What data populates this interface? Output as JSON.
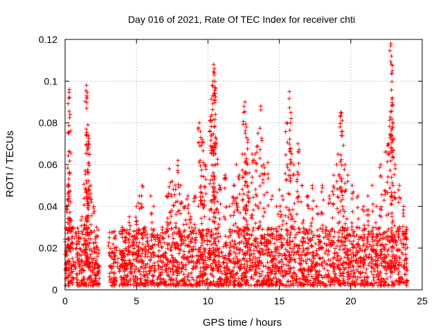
{
  "chart_data": {
    "type": "scatter",
    "title": "Day 016 of 2021, Rate Of TEC Index for receiver chti",
    "xlabel": "GPS time / hours",
    "ylabel": "ROTI / TECUs",
    "xlim": [
      0,
      25
    ],
    "ylim": [
      0,
      0.12
    ],
    "x_ticks": [
      0,
      5,
      10,
      15,
      20,
      25
    ],
    "x_tick_labels": [
      "0",
      "5",
      "10",
      "15",
      "20",
      "25"
    ],
    "y_ticks": [
      0,
      0.02,
      0.04,
      0.06,
      0.08,
      0.1,
      0.12
    ],
    "y_tick_labels": [
      "0",
      "0.02",
      "0.04",
      "0.06",
      "0.08",
      "0.1",
      "0.12"
    ],
    "grid": true,
    "marker": "+",
    "color": "#ff0000",
    "series": [
      {
        "name": "ROTI",
        "points": [
          [
            0.05,
            0.01
          ],
          [
            0.1,
            0.018
          ],
          [
            0.15,
            0.04
          ],
          [
            0.2,
            0.05
          ],
          [
            0.25,
            0.075
          ],
          [
            0.3,
            0.096
          ],
          [
            0.35,
            0.084
          ],
          [
            0.4,
            0.03
          ],
          [
            0.5,
            0.015
          ],
          [
            0.6,
            0.012
          ],
          [
            0.8,
            0.02
          ],
          [
            1.0,
            0.025
          ],
          [
            1.2,
            0.035
          ],
          [
            1.4,
            0.057
          ],
          [
            1.5,
            0.098
          ],
          [
            1.55,
            0.092
          ],
          [
            1.6,
            0.079
          ],
          [
            1.62,
            0.074
          ],
          [
            1.65,
            0.07
          ],
          [
            1.8,
            0.05
          ],
          [
            2.0,
            0.04
          ],
          [
            2.2,
            0.03
          ],
          [
            2.3,
            0.012
          ],
          [
            3.1,
            0.025
          ],
          [
            3.3,
            0.018
          ],
          [
            3.5,
            0.02
          ],
          [
            3.7,
            0.015
          ],
          [
            4.0,
            0.03
          ],
          [
            4.2,
            0.025
          ],
          [
            4.5,
            0.035
          ],
          [
            4.8,
            0.028
          ],
          [
            5.0,
            0.04
          ],
          [
            5.2,
            0.045
          ],
          [
            5.4,
            0.05
          ],
          [
            5.6,
            0.03
          ],
          [
            6.0,
            0.045
          ],
          [
            6.2,
            0.04
          ],
          [
            6.5,
            0.025
          ],
          [
            6.8,
            0.03
          ],
          [
            7.1,
            0.045
          ],
          [
            7.3,
            0.058
          ],
          [
            7.5,
            0.052
          ],
          [
            7.7,
            0.05
          ],
          [
            7.9,
            0.062
          ],
          [
            8.1,
            0.05
          ],
          [
            8.4,
            0.04
          ],
          [
            8.6,
            0.045
          ],
          [
            8.8,
            0.035
          ],
          [
            9.1,
            0.045
          ],
          [
            9.4,
            0.08
          ],
          [
            9.5,
            0.073
          ],
          [
            9.6,
            0.072
          ],
          [
            9.8,
            0.06
          ],
          [
            10.2,
            0.083
          ],
          [
            10.3,
            0.098
          ],
          [
            10.4,
            0.108
          ],
          [
            10.45,
            0.104
          ],
          [
            10.5,
            0.097
          ],
          [
            10.6,
            0.07
          ],
          [
            10.8,
            0.05
          ],
          [
            11.2,
            0.055
          ],
          [
            11.5,
            0.04
          ],
          [
            11.8,
            0.05
          ],
          [
            12.0,
            0.06
          ],
          [
            12.2,
            0.055
          ],
          [
            12.5,
            0.085
          ],
          [
            12.6,
            0.09
          ],
          [
            12.7,
            0.078
          ],
          [
            12.8,
            0.072
          ],
          [
            13.1,
            0.065
          ],
          [
            13.3,
            0.065
          ],
          [
            13.5,
            0.075
          ],
          [
            13.7,
            0.088
          ],
          [
            13.9,
            0.06
          ],
          [
            14.2,
            0.061
          ],
          [
            14.5,
            0.045
          ],
          [
            14.8,
            0.04
          ],
          [
            15.0,
            0.048
          ],
          [
            15.2,
            0.045
          ],
          [
            15.5,
            0.08
          ],
          [
            15.7,
            0.095
          ],
          [
            15.8,
            0.085
          ],
          [
            16.0,
            0.06
          ],
          [
            16.3,
            0.07
          ],
          [
            16.6,
            0.05
          ],
          [
            17.0,
            0.045
          ],
          [
            17.3,
            0.05
          ],
          [
            17.6,
            0.04
          ],
          [
            18.0,
            0.05
          ],
          [
            18.5,
            0.045
          ],
          [
            18.8,
            0.055
          ],
          [
            19.1,
            0.065
          ],
          [
            19.3,
            0.085
          ],
          [
            19.4,
            0.081
          ],
          [
            19.6,
            0.06
          ],
          [
            19.8,
            0.055
          ],
          [
            20.1,
            0.05
          ],
          [
            20.5,
            0.045
          ],
          [
            20.9,
            0.04
          ],
          [
            21.2,
            0.045
          ],
          [
            21.5,
            0.05
          ],
          [
            21.8,
            0.04
          ],
          [
            22.1,
            0.06
          ],
          [
            22.4,
            0.066
          ],
          [
            22.6,
            0.07
          ],
          [
            22.8,
            0.118
          ],
          [
            22.85,
            0.112
          ],
          [
            22.9,
            0.092
          ],
          [
            22.95,
            0.078
          ],
          [
            23.1,
            0.06
          ],
          [
            23.4,
            0.05
          ],
          [
            23.7,
            0.04
          ],
          [
            23.9,
            0.03
          ]
        ],
        "baseline_band": {
          "description": "dense base of measurements between about 0.005 and 0.025 TECU/min",
          "x_segments": [
            [
              0.0,
              2.4
            ],
            [
              3.1,
              3.6
            ],
            [
              3.8,
              24.0
            ]
          ],
          "y_range": [
            0.002,
            0.03
          ]
        }
      }
    ]
  }
}
